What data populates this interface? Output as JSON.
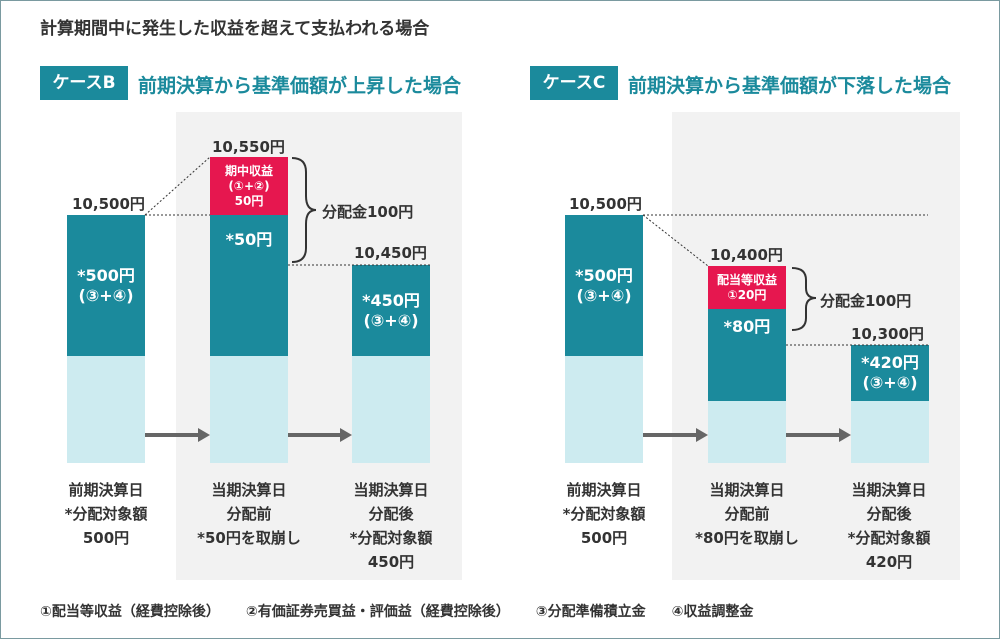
{
  "title": "計算期間中に発生した収益を超えて支払われる場合",
  "caseB": {
    "badge": "ケースB",
    "heading": "前期決算から基準価額が上昇した場合",
    "prev_price": "10,500円",
    "prev_bar_text": "*500円\n(③+④)",
    "cur_price": "10,550円",
    "income_text": "期中収益\n(①+②)\n50円",
    "cur_bar_text": "*50円",
    "dist_label": "分配金100円",
    "after_price": "10,450円",
    "after_bar_text": "*450円\n(③+④)",
    "label_prev": "前期決算日\n*分配対象額\n500円",
    "label_before": "当期決算日\n分配前\n*50円を取崩し",
    "label_after": "当期決算日\n分配後\n*分配対象額\n450円"
  },
  "caseC": {
    "badge": "ケースC",
    "heading": "前期決算から基準価額が下落した場合",
    "prev_price": "10,500円",
    "prev_bar_text": "*500円\n(③+④)",
    "cur_price": "10,400円",
    "income_text": "配当等収益\n①20円",
    "cur_bar_text": "*80円",
    "dist_label": "分配金100円",
    "after_price": "10,300円",
    "after_bar_text": "*420円\n(③+④)",
    "label_prev": "前期決算日\n*分配対象額\n500円",
    "label_before": "当期決算日\n分配前\n*80円を取崩し",
    "label_after": "当期決算日\n分配後\n*分配対象額\n420円"
  },
  "legend": [
    "①配当等収益（経費控除後）",
    "②有価証券売買益・評価益（経費控除後）",
    "③分配準備積立金",
    "④収益調整金"
  ],
  "colors": {
    "teal": "#1b8a9c",
    "light_teal": "#cdebf0",
    "red": "#e6174f",
    "shade": "#f2f2f2"
  }
}
